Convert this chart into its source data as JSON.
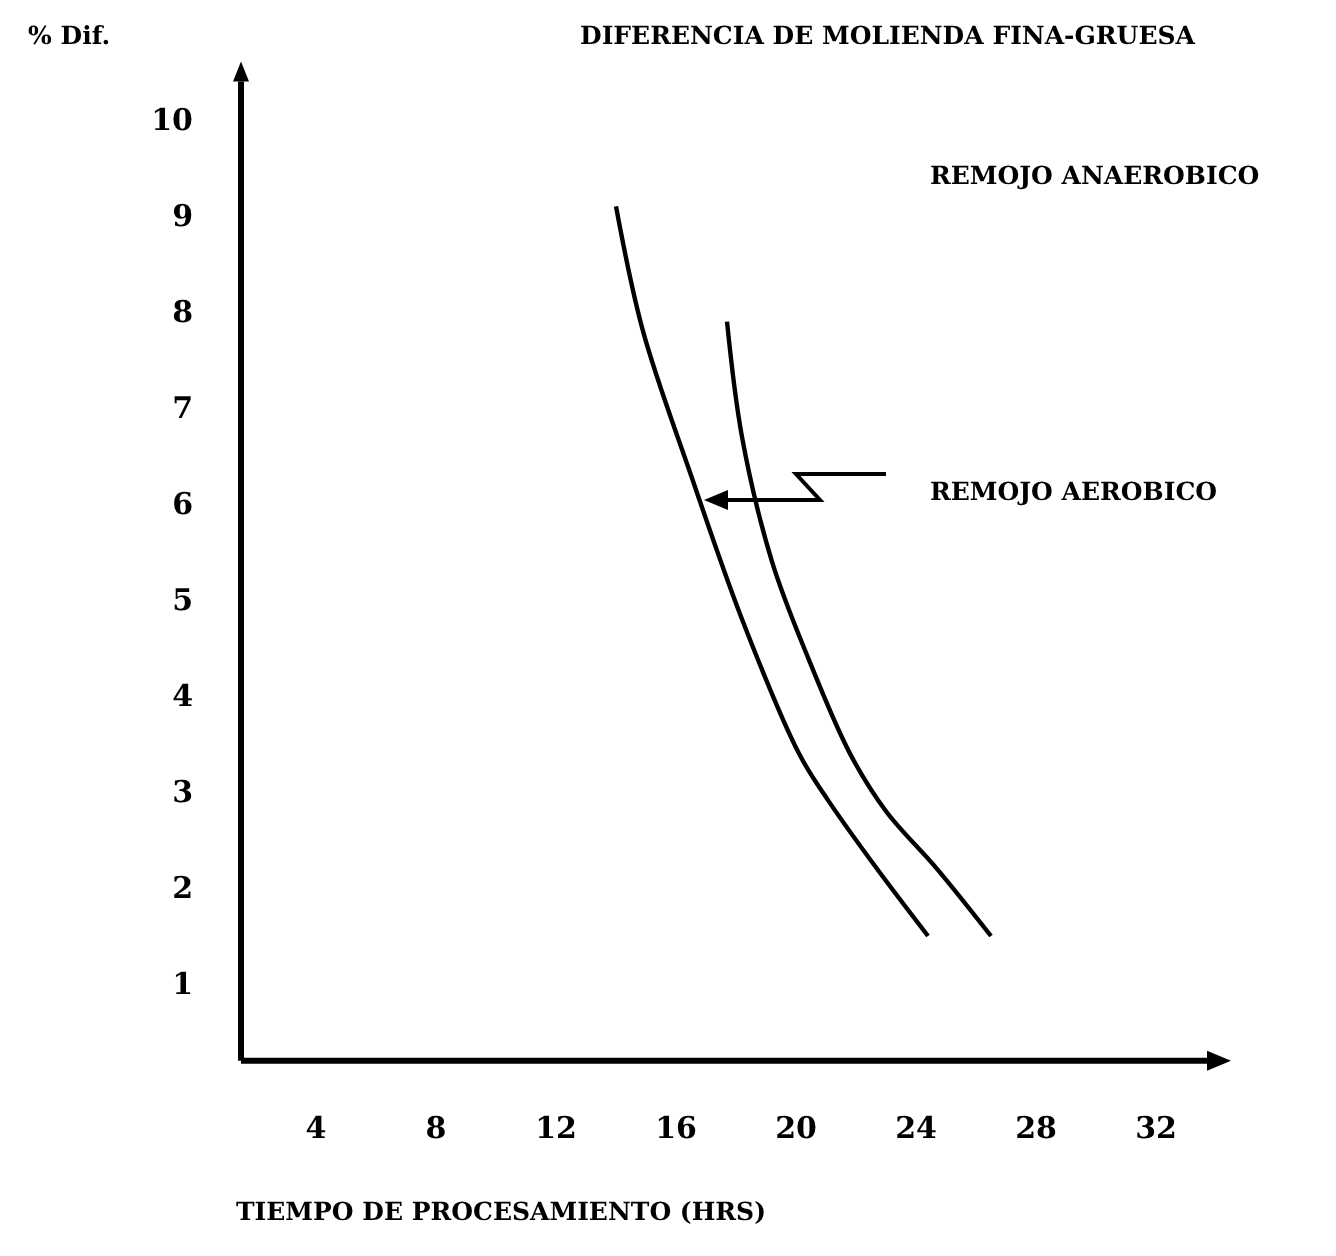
{
  "chart_data": {
    "type": "line",
    "title": "DIFERENCIA DE MOLIENDA FINA-GRUESA",
    "ylabel": "% Dif.",
    "xlabel": "TIEMPO DE PROCESAMIENTO (HRS)",
    "xlim": [
      1.5,
      33.7
    ],
    "ylim": [
      0.2,
      10.4
    ],
    "xticks": [
      4,
      8,
      12,
      16,
      20,
      24,
      28,
      32
    ],
    "yticks": [
      1,
      2,
      3,
      4,
      5,
      6,
      7,
      8,
      9,
      10
    ],
    "grid": false,
    "marker": "none",
    "line_style": "solid",
    "annotations": [
      "REMOJO ANAEROBICO",
      "REMOJO AEROBICO"
    ],
    "series": [
      {
        "color": "#000000",
        "x": [
          14.0,
          14.9,
          16.5,
          18.2,
          20.1,
          21.1,
          22.7,
          24.4
        ],
        "values": [
          9.1,
          7.8,
          6.3,
          4.8,
          3.4,
          2.9,
          2.2,
          1.5
        ]
      },
      {
        "color": "#000000",
        "x": [
          17.7,
          18.2,
          19.2,
          20.4,
          21.8,
          23.0,
          24.7,
          26.5
        ],
        "values": [
          7.9,
          6.7,
          5.4,
          4.4,
          3.4,
          2.8,
          2.2,
          1.5
        ]
      }
    ]
  }
}
